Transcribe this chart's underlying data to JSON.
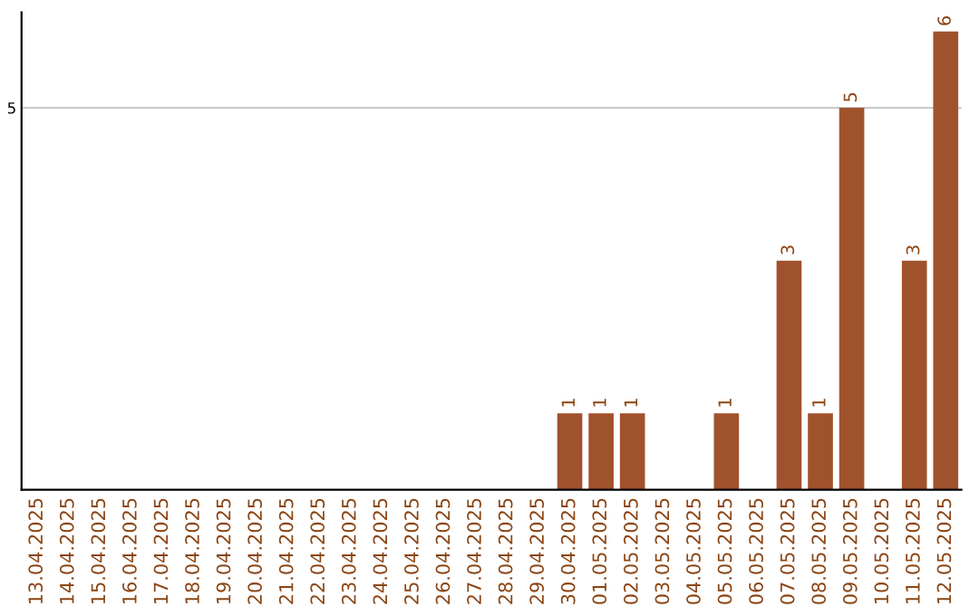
{
  "chart_data": {
    "type": "bar",
    "categories": [
      "13.04.2025",
      "14.04.2025",
      "15.04.2025",
      "16.04.2025",
      "17.04.2025",
      "18.04.2025",
      "19.04.2025",
      "20.04.2025",
      "21.04.2025",
      "22.04.2025",
      "23.04.2025",
      "24.04.2025",
      "25.04.2025",
      "26.04.2025",
      "27.04.2025",
      "28.04.2025",
      "29.04.2025",
      "30.04.2025",
      "01.05.2025",
      "02.05.2025",
      "03.05.2025",
      "04.05.2025",
      "05.05.2025",
      "06.05.2025",
      "07.05.2025",
      "08.05.2025",
      "09.05.2025",
      "10.05.2025",
      "11.05.2025",
      "12.05.2025"
    ],
    "values": [
      null,
      null,
      null,
      null,
      null,
      null,
      null,
      null,
      null,
      null,
      null,
      null,
      null,
      null,
      null,
      null,
      null,
      1,
      1,
      1,
      null,
      null,
      1,
      null,
      3,
      1,
      5,
      null,
      3,
      6
    ],
    "color": "#a0522d",
    "ylim": [
      0,
      6.25
    ],
    "yticks": [
      5
    ],
    "grid": "y",
    "data_labels": true,
    "legend": false
  }
}
